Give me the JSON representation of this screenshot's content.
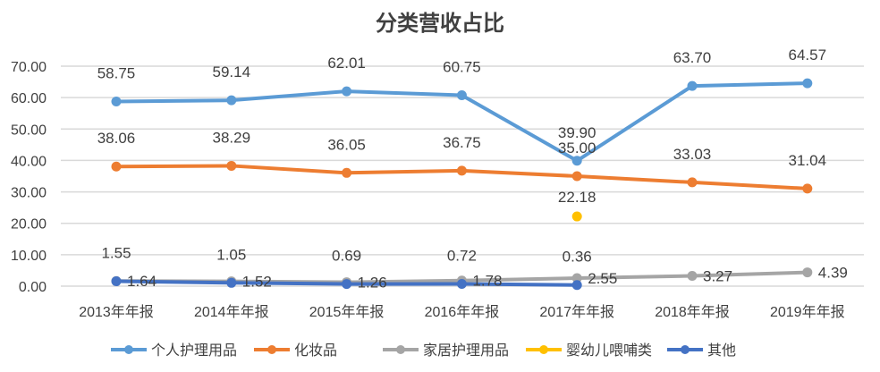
{
  "chart_data": {
    "type": "line",
    "title": "分类营收占比",
    "xlabel": "",
    "ylabel": "",
    "ylim": [
      0,
      70
    ],
    "yticks": [
      "0.00",
      "10.00",
      "20.00",
      "30.00",
      "40.00",
      "50.00",
      "60.00",
      "70.00"
    ],
    "grid": true,
    "legend_position": "bottom",
    "categories": [
      "2013年年报",
      "2014年年报",
      "2015年年报",
      "2016年年报",
      "2017年年报",
      "2018年年报",
      "2019年年报"
    ],
    "series": [
      {
        "name": "个人护理用品",
        "color": "#5B9BD5",
        "values": [
          58.75,
          59.14,
          62.01,
          60.75,
          39.9,
          63.7,
          64.57
        ],
        "labels": [
          "58.75",
          "59.14",
          "62.01",
          "60.75",
          "39.90",
          "63.70",
          "64.57"
        ]
      },
      {
        "name": "化妆品",
        "color": "#ED7D31",
        "values": [
          38.06,
          38.29,
          36.05,
          36.75,
          35.0,
          33.03,
          31.04
        ],
        "labels": [
          "38.06",
          "38.29",
          "36.05",
          "36.75",
          "35.00",
          "33.03",
          "31.04"
        ]
      },
      {
        "name": "家居护理用品",
        "color": "#A5A5A5",
        "values": [
          1.64,
          1.52,
          1.26,
          1.78,
          2.55,
          3.27,
          4.39
        ],
        "labels": [
          "1.64",
          "1.52",
          "1.26",
          "1.78",
          "2.55",
          "3.27",
          "4.39"
        ]
      },
      {
        "name": "婴幼儿喂哺类",
        "color": "#FFC000",
        "values": [
          null,
          null,
          null,
          null,
          22.18,
          null,
          null
        ],
        "labels": [
          null,
          null,
          null,
          null,
          "22.18",
          null,
          null
        ]
      },
      {
        "name": "其他",
        "color": "#4472C4",
        "values": [
          1.55,
          1.05,
          0.69,
          0.72,
          0.36,
          null,
          null
        ],
        "labels": [
          "1.55",
          "1.05",
          "0.69",
          "0.72",
          "0.36",
          null,
          null
        ]
      }
    ]
  }
}
